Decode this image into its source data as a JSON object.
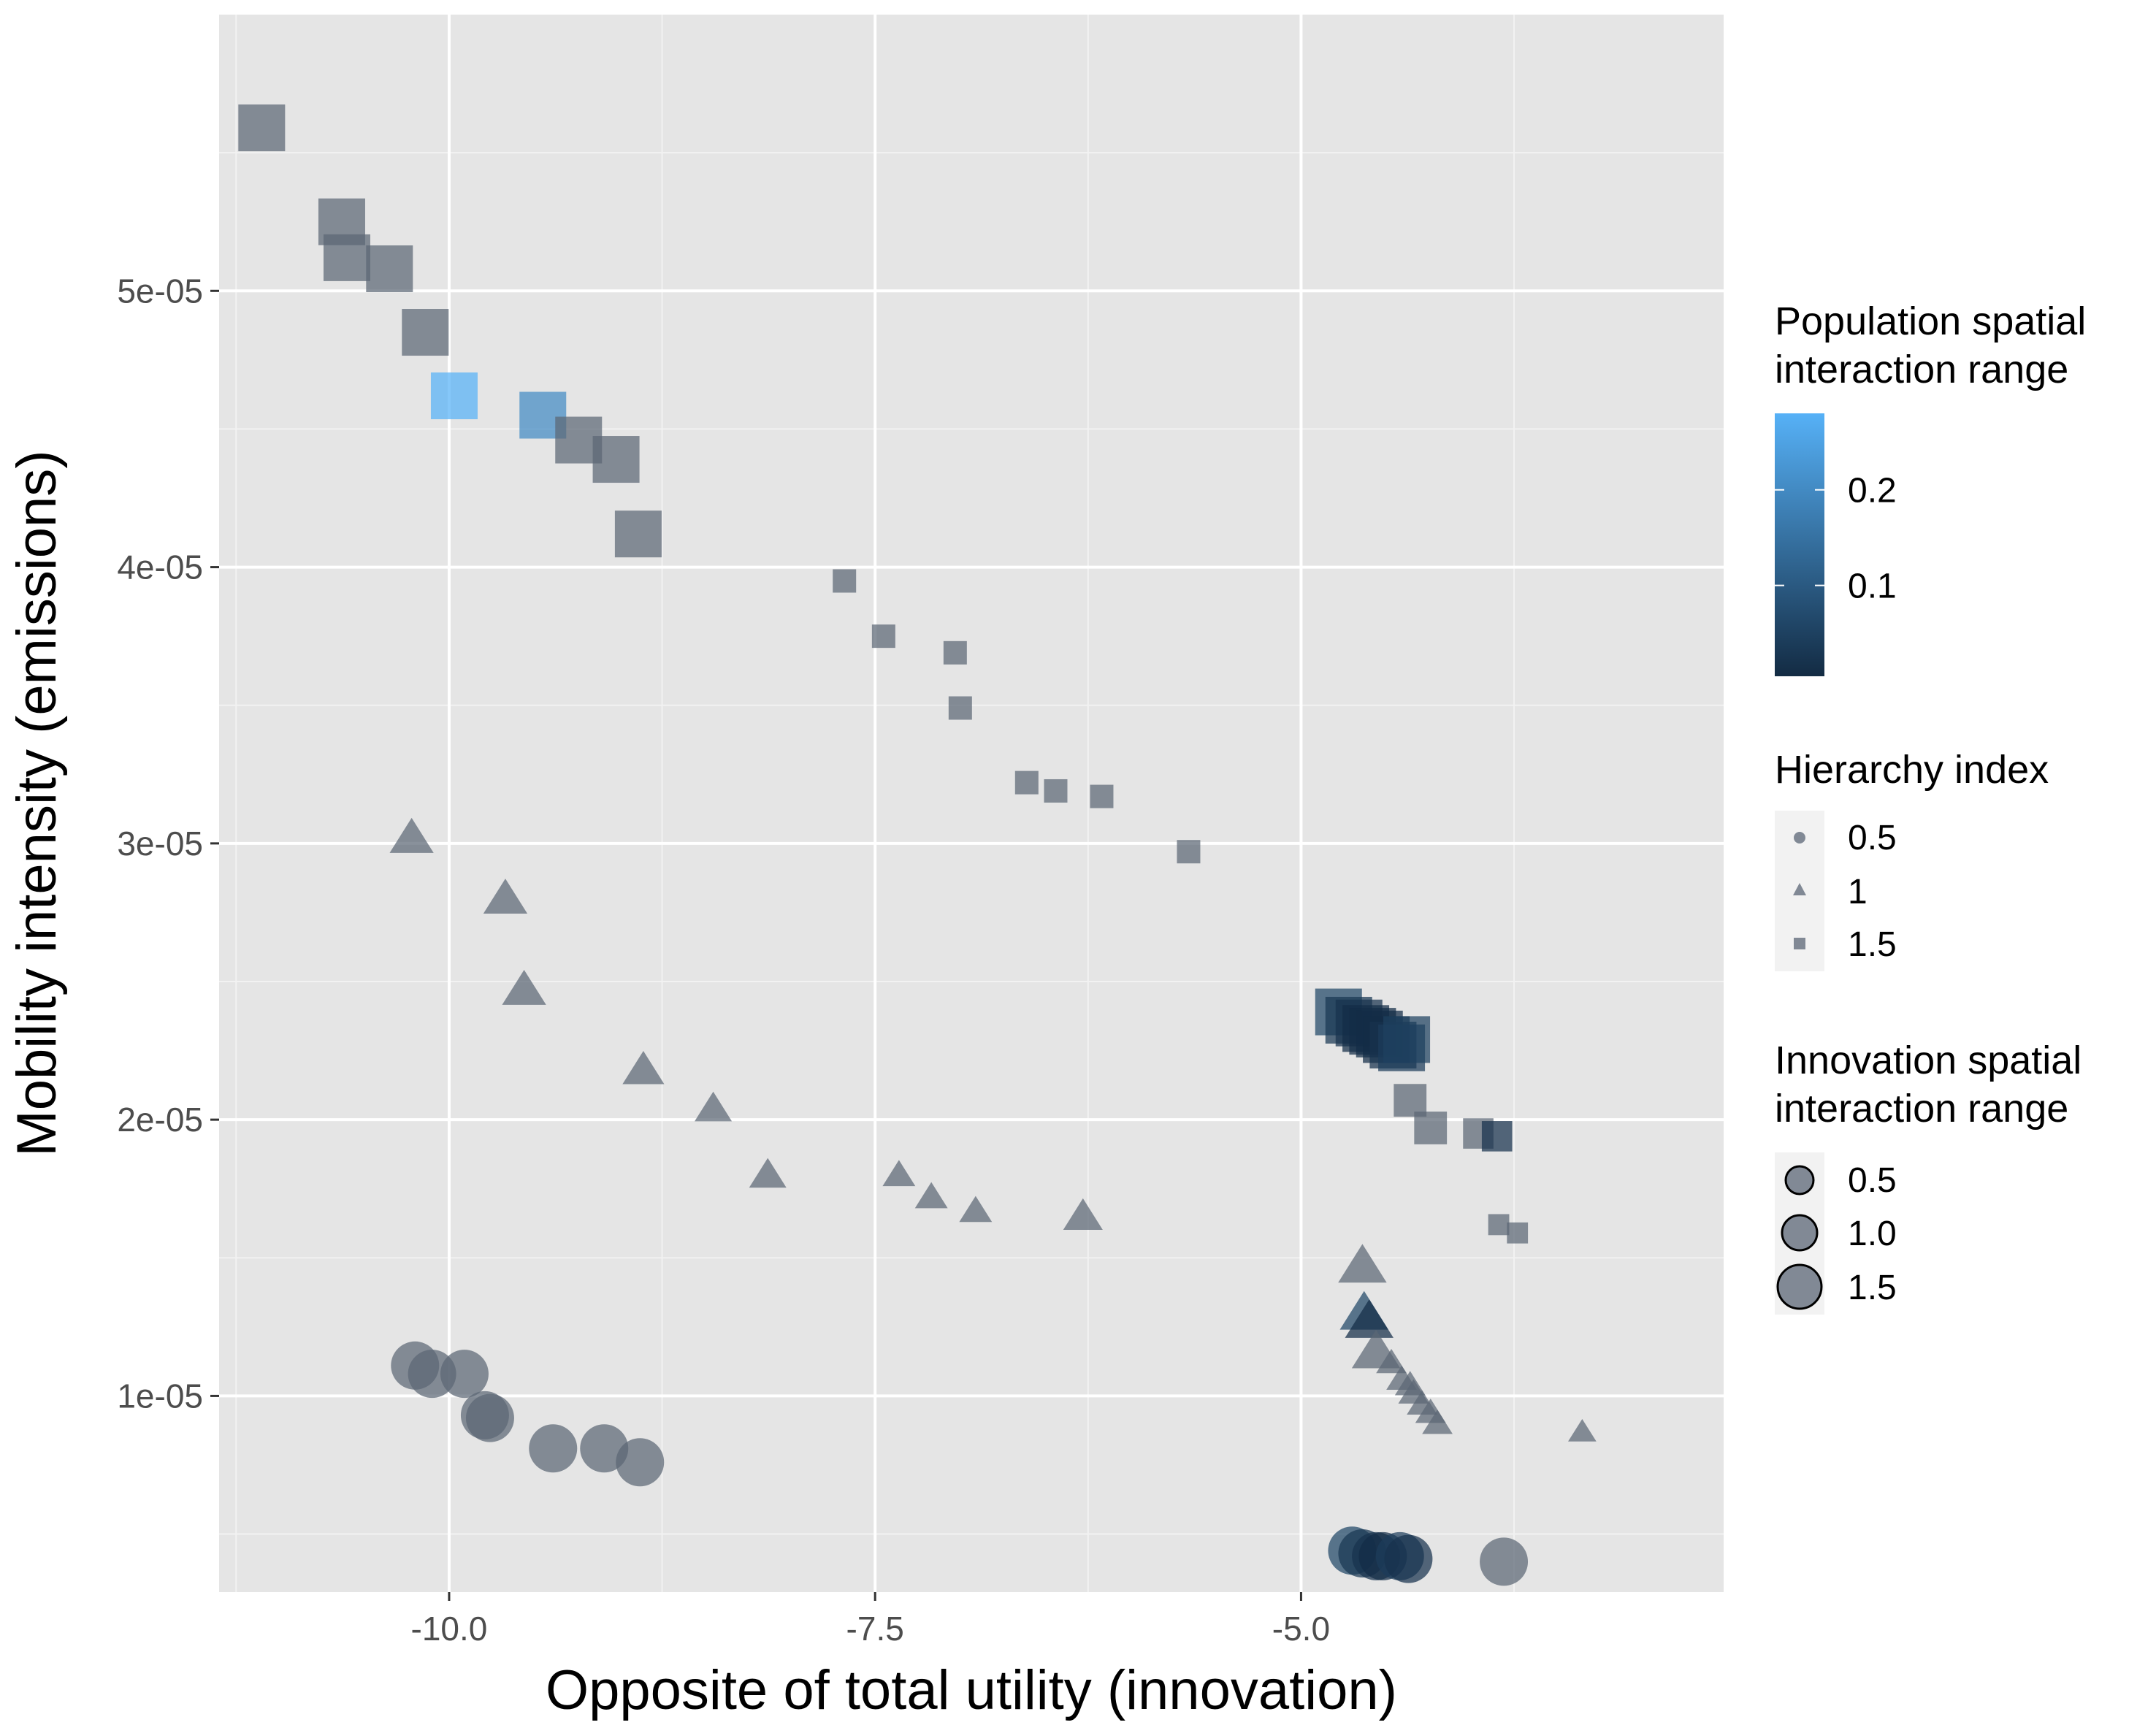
{
  "chart_data": {
    "type": "scatter",
    "title": "",
    "xlabel": "Opposite of total utility (innovation)",
    "ylabel": "Mobility intensity (emissions)",
    "xlim": [
      -11.35,
      -2.52
    ],
    "ylim": [
      2.9e-06,
      6e-05
    ],
    "x_ticks": [
      {
        "value": -10.0,
        "label": "-10.0"
      },
      {
        "value": -7.5,
        "label": "-7.5"
      },
      {
        "value": -5.0,
        "label": "-5.0"
      }
    ],
    "y_ticks": [
      {
        "value": 1e-05,
        "label": "1e-05"
      },
      {
        "value": 2e-05,
        "label": "2e-05"
      },
      {
        "value": 3e-05,
        "label": "3e-05"
      },
      {
        "value": 4e-05,
        "label": "4e-05"
      },
      {
        "value": 5e-05,
        "label": "5e-05"
      }
    ],
    "grid": true,
    "legend_position": "right",
    "point_color_default": "#5b6675",
    "legends": {
      "color": {
        "title_lines": [
          "Population spatial",
          "interaction range"
        ],
        "low_color": "#132b43",
        "high_color": "#56b1f7",
        "range": [
          0.005,
          0.28
        ],
        "ticks": [
          {
            "value": 0.2,
            "label": "0.2"
          },
          {
            "value": 0.1,
            "label": "0.1"
          }
        ]
      },
      "shape": {
        "title": "Hierarchy index",
        "entries": [
          {
            "shape": "circle",
            "label": "0.5"
          },
          {
            "shape": "triangle",
            "label": "1"
          },
          {
            "shape": "square",
            "label": "1.5"
          }
        ]
      },
      "size": {
        "title_lines": [
          "Innovation spatial",
          "interaction range"
        ],
        "entries": [
          {
            "value": 0.5,
            "label": "0.5"
          },
          {
            "value": 1.0,
            "label": "1.0"
          },
          {
            "value": 1.5,
            "label": "1.5"
          }
        ]
      }
    },
    "series": [
      {
        "shape": "square",
        "points": [
          {
            "x": -11.1,
            "y": 5.59e-05,
            "size": 1.5
          },
          {
            "x": -10.63,
            "y": 5.25e-05,
            "size": 1.5
          },
          {
            "x": -10.6,
            "y": 5.12e-05,
            "size": 1.5
          },
          {
            "x": -10.35,
            "y": 5.08e-05,
            "size": 1.5
          },
          {
            "x": -10.14,
            "y": 4.85e-05,
            "size": 1.5
          },
          {
            "x": -9.97,
            "y": 4.62e-05,
            "size": 1.5,
            "color": 0.28
          },
          {
            "x": -9.45,
            "y": 4.55e-05,
            "size": 1.5,
            "color": 0.2
          },
          {
            "x": -9.24,
            "y": 4.46e-05,
            "size": 1.5
          },
          {
            "x": -9.02,
            "y": 4.39e-05,
            "size": 1.5
          },
          {
            "x": -8.89,
            "y": 4.12e-05,
            "size": 1.5
          },
          {
            "x": -7.68,
            "y": 3.95e-05,
            "size": 0.5
          },
          {
            "x": -7.45,
            "y": 3.75e-05,
            "size": 0.5
          },
          {
            "x": -7.03,
            "y": 3.69e-05,
            "size": 0.5
          },
          {
            "x": -7.0,
            "y": 3.49e-05,
            "size": 0.5
          },
          {
            "x": -6.61,
            "y": 3.22e-05,
            "size": 0.5
          },
          {
            "x": -6.44,
            "y": 3.19e-05,
            "size": 0.5
          },
          {
            "x": -6.17,
            "y": 3.17e-05,
            "size": 0.5
          },
          {
            "x": -5.66,
            "y": 2.97e-05,
            "size": 0.5
          },
          {
            "x": -4.78,
            "y": 2.39e-05,
            "size": 1.5,
            "color": 0.06
          },
          {
            "x": -4.72,
            "y": 2.36e-05,
            "size": 1.5,
            "color": 0.03
          },
          {
            "x": -4.66,
            "y": 2.35e-05,
            "size": 1.5,
            "color": 0.02
          },
          {
            "x": -4.62,
            "y": 2.33e-05,
            "size": 1.5,
            "color": 0.01
          },
          {
            "x": -4.58,
            "y": 2.32e-05,
            "size": 1.5,
            "color": 0.01
          },
          {
            "x": -4.54,
            "y": 2.31e-05,
            "size": 1.5,
            "color": 0.01
          },
          {
            "x": -4.5,
            "y": 2.29e-05,
            "size": 1.5,
            "color": 0.01
          },
          {
            "x": -4.46,
            "y": 2.27e-05,
            "size": 1.5,
            "color": 0.02
          },
          {
            "x": -4.41,
            "y": 2.26e-05,
            "size": 1.5,
            "color": 0.04
          },
          {
            "x": -4.38,
            "y": 2.29e-05,
            "size": 1.5,
            "color": 0.05
          },
          {
            "x": -4.36,
            "y": 2.07e-05,
            "size": 0.9
          },
          {
            "x": -4.24,
            "y": 1.97e-05,
            "size": 0.9
          },
          {
            "x": -3.96,
            "y": 1.95e-05,
            "size": 0.8
          },
          {
            "x": -3.85,
            "y": 1.94e-05,
            "size": 0.8,
            "color": 0.02
          },
          {
            "x": -3.84,
            "y": 1.62e-05,
            "size": 0.4
          },
          {
            "x": -3.73,
            "y": 1.59e-05,
            "size": 0.4
          }
        ]
      },
      {
        "shape": "triangle",
        "points": [
          {
            "x": -10.22,
            "y": 3.02e-05,
            "size": 1.1
          },
          {
            "x": -9.67,
            "y": 2.8e-05,
            "size": 1.1
          },
          {
            "x": -9.56,
            "y": 2.47e-05,
            "size": 1.1
          },
          {
            "x": -8.86,
            "y": 2.18e-05,
            "size": 1.0
          },
          {
            "x": -8.45,
            "y": 2.04e-05,
            "size": 0.8
          },
          {
            "x": -8.13,
            "y": 1.8e-05,
            "size": 0.8
          },
          {
            "x": -7.36,
            "y": 1.8e-05,
            "size": 0.6
          },
          {
            "x": -7.17,
            "y": 1.72e-05,
            "size": 0.6
          },
          {
            "x": -6.91,
            "y": 1.67e-05,
            "size": 0.6
          },
          {
            "x": -6.28,
            "y": 1.65e-05,
            "size": 0.9
          },
          {
            "x": -4.64,
            "y": 1.47e-05,
            "size": 1.3
          },
          {
            "x": -4.63,
            "y": 1.3e-05,
            "size": 1.3,
            "color": 0.06
          },
          {
            "x": -4.6,
            "y": 1.27e-05,
            "size": 1.3,
            "color": 0.01
          },
          {
            "x": -4.56,
            "y": 1.16e-05,
            "size": 1.3
          },
          {
            "x": -4.47,
            "y": 1.12e-05,
            "size": 0.5
          },
          {
            "x": -4.41,
            "y": 1.06e-05,
            "size": 0.5
          },
          {
            "x": -4.36,
            "y": 1.04e-05,
            "size": 0.5
          },
          {
            "x": -4.34,
            "y": 1.01e-05,
            "size": 0.5
          },
          {
            "x": -4.29,
            "y": 9.7e-06,
            "size": 0.5
          },
          {
            "x": -4.24,
            "y": 9.4e-06,
            "size": 0.5
          },
          {
            "x": -4.2,
            "y": 9e-06,
            "size": 0.5
          },
          {
            "x": -3.35,
            "y": 8.7e-06,
            "size": 0.4
          }
        ]
      },
      {
        "shape": "circle",
        "points": [
          {
            "x": -10.2,
            "y": 1.11e-05,
            "size": 1.5
          },
          {
            "x": -10.1,
            "y": 1.08e-05,
            "size": 1.5
          },
          {
            "x": -9.91,
            "y": 1.08e-05,
            "size": 1.5
          },
          {
            "x": -9.79,
            "y": 9.3e-06,
            "size": 1.5
          },
          {
            "x": -9.76,
            "y": 9.2e-06,
            "size": 1.5
          },
          {
            "x": -9.39,
            "y": 8.1e-06,
            "size": 1.5
          },
          {
            "x": -9.09,
            "y": 8.1e-06,
            "size": 1.5
          },
          {
            "x": -8.88,
            "y": 7.6e-06,
            "size": 1.5
          },
          {
            "x": -4.7,
            "y": 4.4e-06,
            "size": 1.5,
            "color": 0.06
          },
          {
            "x": -4.64,
            "y": 4.3e-06,
            "size": 1.5,
            "color": 0.03
          },
          {
            "x": -4.56,
            "y": 4.2e-06,
            "size": 1.5,
            "color": 0.02
          },
          {
            "x": -4.52,
            "y": 4.2e-06,
            "size": 1.5,
            "color": 0.01
          },
          {
            "x": -4.42,
            "y": 4.2e-06,
            "size": 1.5,
            "color": 0.04
          },
          {
            "x": -4.37,
            "y": 4.1e-06,
            "size": 1.5,
            "color": 0.02
          },
          {
            "x": -3.81,
            "y": 4e-06,
            "size": 1.5
          }
        ]
      }
    ]
  }
}
